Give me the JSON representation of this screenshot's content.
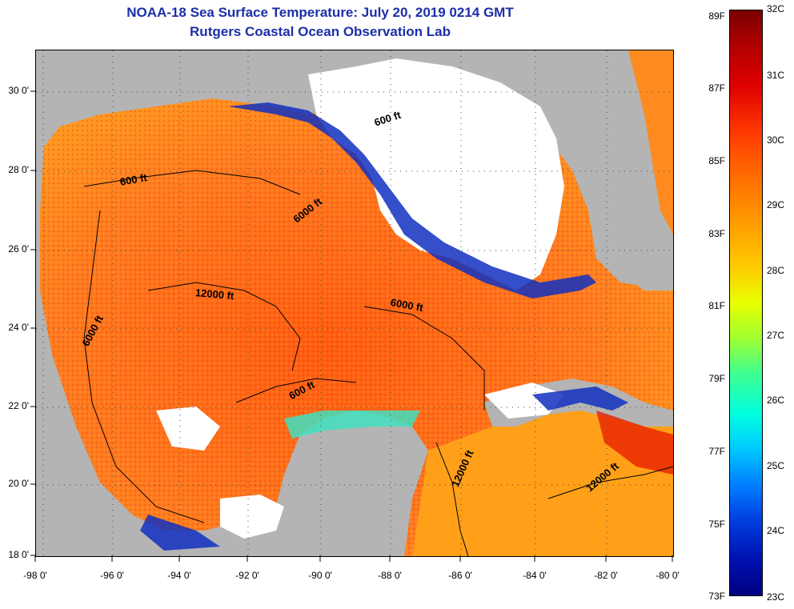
{
  "title": {
    "line1": "NOAA-18 Sea Surface Temperature:  July 20, 2019 0214 GMT",
    "line2": "Rutgers Coastal Ocean Observation Lab"
  },
  "map": {
    "lat_labels": [
      "30 0'",
      "28 0'",
      "26 0'",
      "24 0'",
      "22 0'",
      "20 0'",
      "18 0'"
    ],
    "lon_labels": [
      "-98 0'",
      "-96 0'",
      "-94 0'",
      "-92 0'",
      "-90 0'",
      "-88 0'",
      "-86 0'",
      "-84 0'",
      "-82 0'",
      "-80 0'"
    ],
    "depth_contours": [
      "600 ft",
      "600 ft",
      "6000 ft",
      "12000 ft",
      "6000 ft",
      "6000 ft",
      "600 ft",
      "12000 ft",
      "12000 ft"
    ],
    "colors": {
      "land": "#b4b4b4",
      "cloud": "#ffffff",
      "warm_water": "#ff6a1a",
      "cool_water": "#1030c0"
    }
  },
  "colorbar": {
    "fahrenheit": [
      "89F",
      "87F",
      "85F",
      "83F",
      "81F",
      "79F",
      "77F",
      "75F",
      "73F"
    ],
    "celsius": [
      "32C",
      "31C",
      "30C",
      "29C",
      "28C",
      "27C",
      "26C",
      "25C",
      "24C",
      "23C"
    ]
  }
}
